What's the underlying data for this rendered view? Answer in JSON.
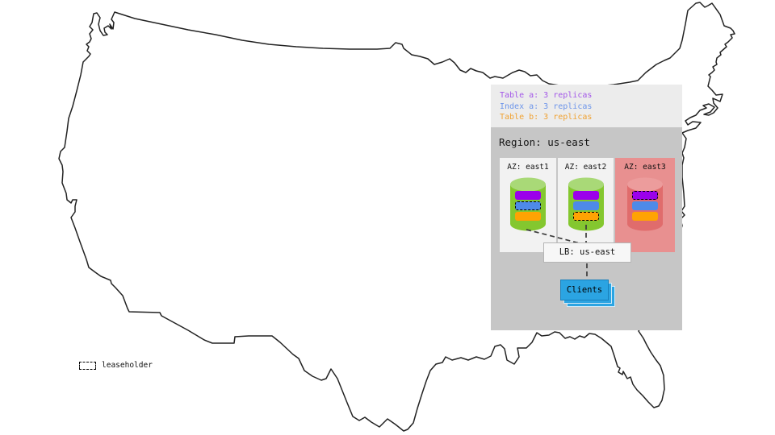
{
  "map": {
    "name": "united-states-outline"
  },
  "legend": {
    "items": [
      {
        "label": "Table a: 3 replicas",
        "color": "#A357E8"
      },
      {
        "label": "Index a: 3 replicas",
        "color": "#6D95EA"
      },
      {
        "label": "Table b: 3 replicas",
        "color": "#F0A232"
      }
    ]
  },
  "region": {
    "title": "Region: us-east",
    "azs": [
      {
        "label": "AZ: east1",
        "highlighted": false,
        "replicas": [
          {
            "name": "table-a",
            "color": "#9B00EB",
            "leaseholder": false
          },
          {
            "name": "index-a",
            "color": "#4E8AE8",
            "leaseholder": true
          },
          {
            "name": "table-b",
            "color": "#FFA303",
            "leaseholder": false
          }
        ]
      },
      {
        "label": "AZ: east2",
        "highlighted": false,
        "replicas": [
          {
            "name": "table-a",
            "color": "#9B00EB",
            "leaseholder": false
          },
          {
            "name": "index-a",
            "color": "#4E8AE8",
            "leaseholder": false
          },
          {
            "name": "table-b",
            "color": "#FFA303",
            "leaseholder": true
          }
        ]
      },
      {
        "label": "AZ: east3",
        "highlighted": true,
        "replicas": [
          {
            "name": "table-a",
            "color": "#9B00EB",
            "leaseholder": true
          },
          {
            "name": "index-a",
            "color": "#4E8AE8",
            "leaseholder": false
          },
          {
            "name": "table-b",
            "color": "#FFA303",
            "leaseholder": false
          }
        ]
      }
    ],
    "lb_label": "LB: us-east",
    "clients_label": "Clients"
  },
  "map_legend": {
    "label": "leaseholder"
  },
  "colors": {
    "legend_panel_bg": "#ECECEC",
    "region_panel_bg": "#C6C6C6",
    "az_bg": "#F2F2F2",
    "az_highlight_bg": "#E89090",
    "cylinder_green": "#84C72F",
    "cylinder_green_top": "#A9D977",
    "cylinder_red": "#E06C6C",
    "cylinder_red_top": "#EC9C9C",
    "clients_blue": "#2BA4E2",
    "map_stroke": "#222222"
  }
}
